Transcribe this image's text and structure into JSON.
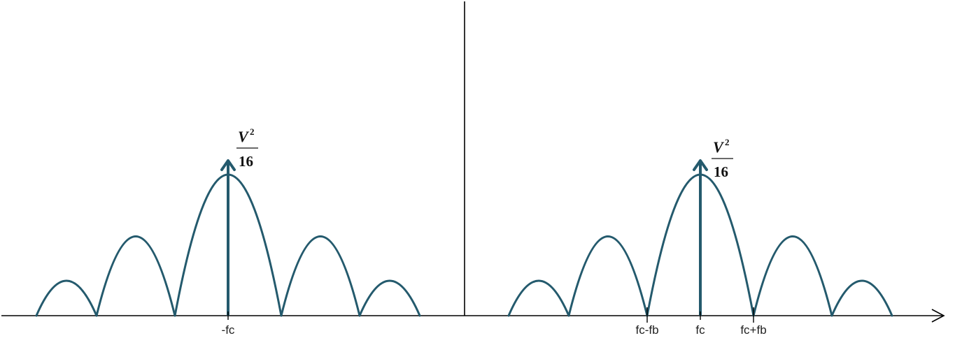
{
  "diagram": {
    "colors": {
      "spectrum": "#245a6d",
      "axis": "#000000"
    },
    "impulse_labels": [
      {
        "numerator": "V",
        "exponent": "2",
        "denominator": "16"
      },
      {
        "numerator": "V",
        "exponent": "2",
        "denominator": "16"
      }
    ],
    "tick_labels": {
      "neg_fc": "-fc",
      "fc_minus_fb": "fc-fb",
      "fc": "fc",
      "fc_plus_fb": "fc+fb"
    }
  }
}
